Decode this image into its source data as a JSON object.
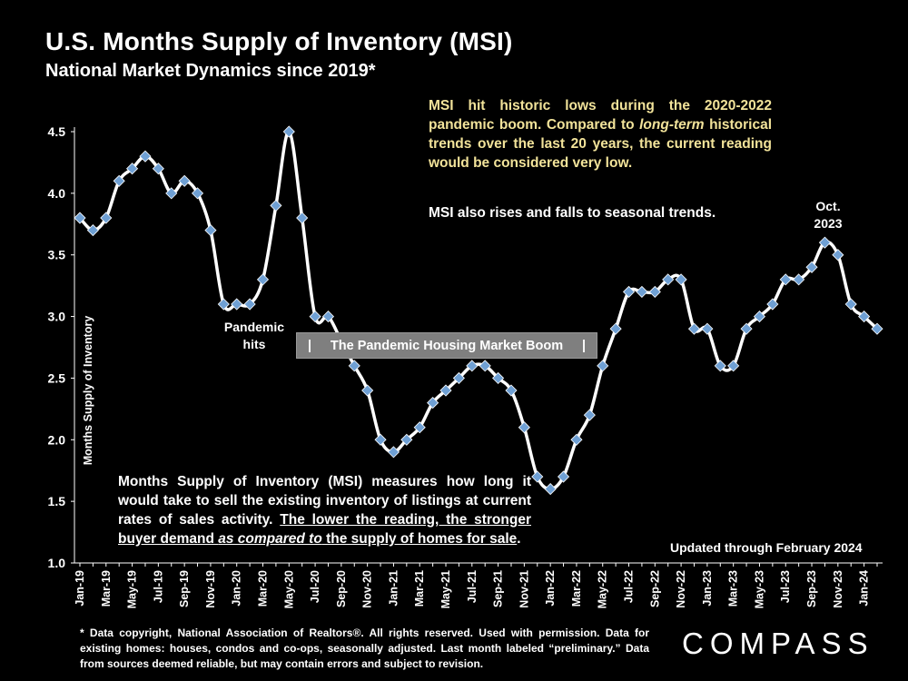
{
  "title": "U.S. Months Supply of Inventory (MSI)",
  "subtitle": "National Market Dynamics since 2019*",
  "annotations": {
    "yellow_note_parts": [
      "MSI hit historic lows during the 2020-2022 pandemic boom. Compared to ",
      "long-term",
      " historical trends over the last 20 years, the current reading would be considered very low."
    ],
    "seasonal_note": "MSI also rises and falls to seasonal trends.",
    "oct_label_line1": "Oct.",
    "oct_label_line2": "2023",
    "pandemic_line1": "Pandemic",
    "pandemic_line2": "hits",
    "boom_bar_left": "|",
    "boom_bar_text": "The Pandemic Housing Market Boom",
    "boom_bar_right": "|",
    "msi_def_part1": "Months Supply of Inventory (MSI) measures how long it would take to sell the existing inventory of listings at current rates of sales activity. ",
    "msi_def_underlined_a": "The lower the reading, the stronger buyer demand ",
    "msi_def_underlined_em": "as compared to",
    "msi_def_underlined_b": " the supply of homes for sale",
    "msi_def_end": ".",
    "updated": "Updated through February 2024"
  },
  "footnote": "* Data copyright, National Association of Realtors®. All rights reserved. Used with permission. Data for existing homes: houses, condos and co-ops, seasonally adjusted. Last month labeled “preliminary.” Data from sources deemed reliable, but may contain errors and subject to revision.",
  "logo": "COMPASS",
  "colors": {
    "background": "#000000",
    "line": "#ffffff",
    "marker": "#6fa0d4",
    "note_yellow": "#f2e39a",
    "boom_bar": "#7f7f7f"
  },
  "chart_data": {
    "type": "line",
    "ylabel": "Months Supply of Inventory",
    "xlabel": "",
    "ylim": [
      1.0,
      4.5
    ],
    "yticks": [
      "1.0",
      "1.5",
      "2.0",
      "2.5",
      "3.0",
      "3.5",
      "4.0",
      "4.5"
    ],
    "grid": false,
    "x": [
      "Jan-19",
      "Feb-19",
      "Mar-19",
      "Apr-19",
      "May-19",
      "Jun-19",
      "Jul-19",
      "Aug-19",
      "Sep-19",
      "Oct-19",
      "Nov-19",
      "Dec-19",
      "Jan-20",
      "Feb-20",
      "Mar-20",
      "Apr-20",
      "May-20",
      "Jun-20",
      "Jul-20",
      "Aug-20",
      "Sep-20",
      "Oct-20",
      "Nov-20",
      "Dec-20",
      "Jan-21",
      "Feb-21",
      "Mar-21",
      "Apr-21",
      "May-21",
      "Jun-21",
      "Jul-21",
      "Aug-21",
      "Sep-21",
      "Oct-21",
      "Nov-21",
      "Dec-21",
      "Jan-22",
      "Feb-22",
      "Mar-22",
      "Apr-22",
      "May-22",
      "Jun-22",
      "Jul-22",
      "Aug-22",
      "Sep-22",
      "Oct-22",
      "Nov-22",
      "Dec-22",
      "Jan-23",
      "Feb-23",
      "Mar-23",
      "Apr-23",
      "May-23",
      "Jun-23",
      "Jul-23",
      "Aug-23",
      "Sep-23",
      "Oct-23",
      "Nov-23",
      "Dec-23",
      "Jan-24",
      "Feb-24"
    ],
    "x_tick_labels": [
      "Jan-19",
      "Mar-19",
      "May-19",
      "Jul-19",
      "Sep-19",
      "Nov-19",
      "Jan-20",
      "Mar-20",
      "May-20",
      "Jul-20",
      "Sep-20",
      "Nov-20",
      "Jan-21",
      "Mar-21",
      "May-21",
      "Jul-21",
      "Sep-21",
      "Nov-21",
      "Jan-22",
      "Mar-22",
      "May-22",
      "Jul-22",
      "Sep-22",
      "Nov-22",
      "Jan-23",
      "Mar-23",
      "May-23",
      "Jul-23",
      "Sep-23",
      "Nov-23",
      "Jan-24"
    ],
    "series": [
      {
        "values": [
          3.8,
          3.7,
          3.8,
          4.1,
          4.2,
          4.3,
          4.2,
          4.0,
          4.1,
          4.0,
          3.7,
          3.1,
          3.1,
          3.1,
          3.3,
          3.9,
          4.5,
          3.8,
          3.0,
          3.0,
          2.8,
          2.6,
          2.4,
          2.0,
          1.9,
          2.0,
          2.1,
          2.3,
          2.4,
          2.5,
          2.6,
          2.6,
          2.5,
          2.4,
          2.1,
          1.7,
          1.6,
          1.7,
          2.0,
          2.2,
          2.6,
          2.9,
          3.2,
          3.2,
          3.2,
          3.3,
          3.3,
          2.9,
          2.9,
          2.6,
          2.6,
          2.9,
          3.0,
          3.1,
          3.3,
          3.3,
          3.4,
          3.6,
          3.5,
          3.1,
          3.0,
          2.9
        ]
      }
    ]
  }
}
